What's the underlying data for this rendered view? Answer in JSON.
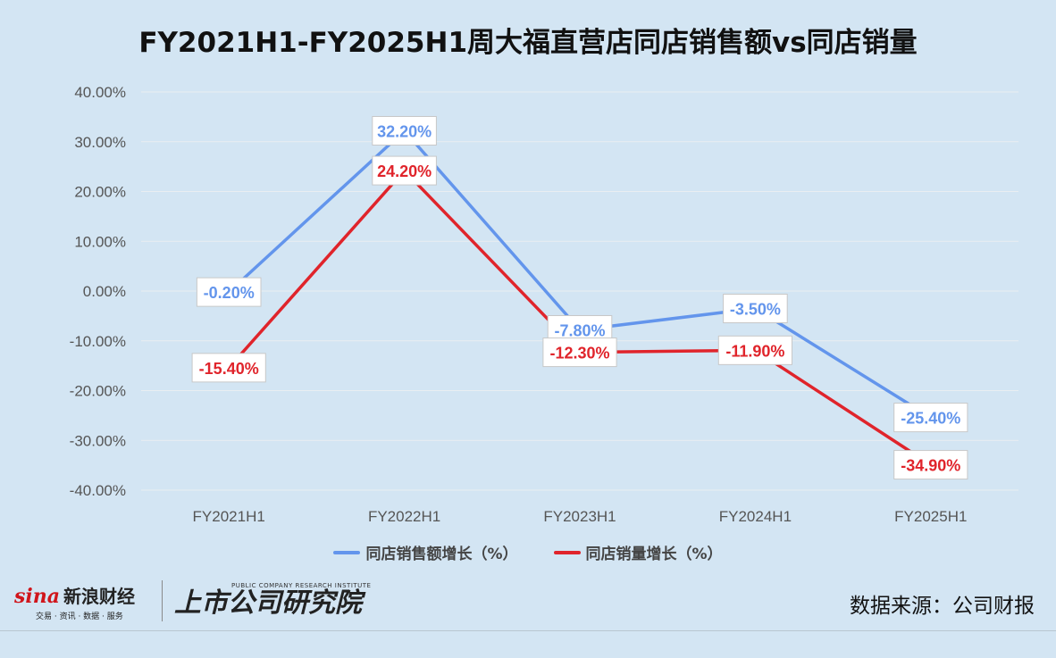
{
  "chart_data": {
    "type": "line",
    "title": "FY2021H1-FY2025H1周大福直营店同店销售额vs同店销量",
    "categories": [
      "FY2021H1",
      "FY2022H1",
      "FY2023H1",
      "FY2024H1",
      "FY2025H1"
    ],
    "y_ticks": [
      "40.00%",
      "30.00%",
      "20.00%",
      "10.00%",
      "0.00%",
      "-10.00%",
      "-20.00%",
      "-30.00%",
      "-40.00%"
    ],
    "ylim": [
      -40,
      40
    ],
    "grid": true,
    "legend_position": "bottom",
    "series": [
      {
        "name": "同店销售额增长（%）",
        "color": "#6395ec",
        "values": [
          -0.2,
          32.2,
          -7.8,
          -3.5,
          -25.4
        ],
        "labels": [
          "-0.20%",
          "32.20%",
          "-7.80%",
          "-3.50%",
          "-25.40%"
        ]
      },
      {
        "name": "同店销量增长（%）",
        "color": "#e0242b",
        "values": [
          -15.4,
          24.2,
          -12.3,
          -11.9,
          -34.9
        ],
        "labels": [
          "-15.40%",
          "24.20%",
          "-12.30%",
          "-11.90%",
          "-34.90%"
        ]
      }
    ]
  },
  "footer": {
    "sina_brand": "sina",
    "sina_name": "新浪财经",
    "sina_sub": "交易 · 资讯 · 数据 · 服务",
    "institute_small": "PUBLIC COMPANY RESEARCH INSTITUTE",
    "institute_name": "上市公司研究院",
    "source": "数据来源：公司财报"
  }
}
